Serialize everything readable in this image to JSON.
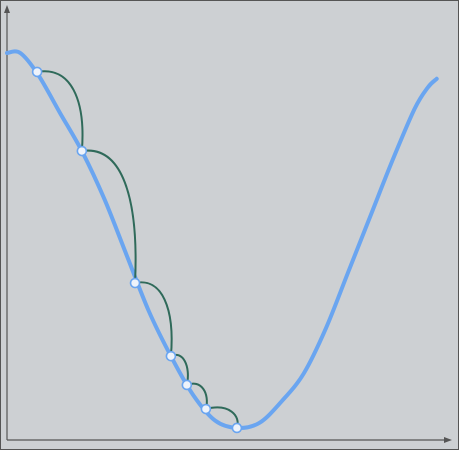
{
  "chart_data": {
    "type": "line",
    "x": [
      0,
      3,
      7,
      12,
      17,
      22,
      27,
      32,
      37,
      42,
      47,
      52,
      57,
      62,
      67,
      72,
      77,
      82,
      87,
      92,
      95,
      97
    ],
    "values": [
      90,
      90,
      85,
      76,
      67,
      56,
      43,
      30,
      19.5,
      10.5,
      4.5,
      2.8,
      4,
      9,
      15.5,
      26,
      39,
      52,
      65,
      77,
      82,
      84
    ],
    "color": "#6aa5f0",
    "steps": {
      "x": [
        6.8,
        16.9,
        28.9,
        37,
        40.6,
        44.9,
        51.9
      ],
      "values": [
        85.6,
        67.2,
        36.5,
        19.5,
        12.8,
        7.2,
        2.8
      ],
      "color": "#2f6a5a"
    },
    "xlim": [
      0,
      100
    ],
    "ylim": [
      0,
      100
    ]
  }
}
